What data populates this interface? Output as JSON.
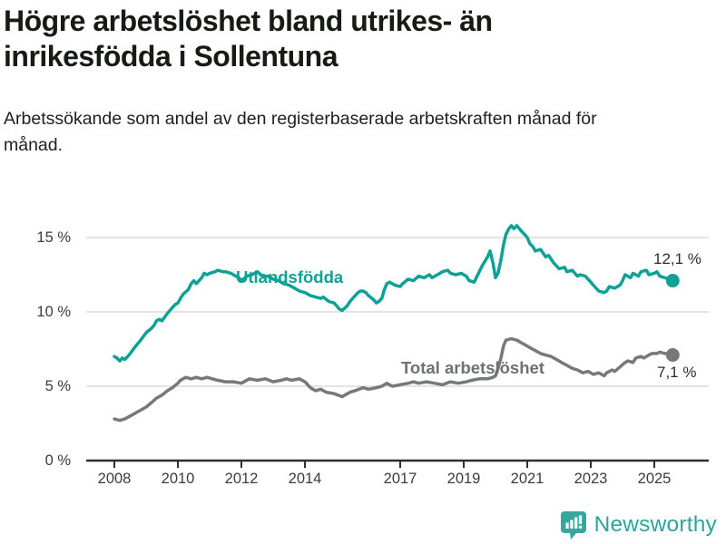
{
  "title": "Högre arbetslöshet bland utrikes- än inrikesfödda i Sollentuna",
  "subtitle": "Arbetssökande som andel av den registerbaserade arbetskraften månad för månad.",
  "branding": {
    "logo_text": "Newsworthy",
    "logo_icon": "bar-chart-speech-bubble-icon",
    "logo_color": "#2ca49b"
  },
  "colors": {
    "foreign_born_line": "#10a196",
    "total_line": "#77787b",
    "total_label": "#6e7073",
    "grid": "#dbdbdb",
    "axis": "#2e2e2e",
    "tick_text": "#3b3b3b",
    "value_text": "#2e2e2e",
    "background": "#ffffff"
  },
  "chart_data": {
    "type": "line",
    "title": "Högre arbetslöshet bland utrikes- än inrikesfödda i Sollentuna",
    "subtitle": "Arbetssökande som andel av den registerbaserade arbetskraften månad för månad.",
    "xlabel": "",
    "ylabel": "",
    "x_unit": "year (monthly data)",
    "y_unit": "%",
    "xlim": [
      2007.1,
      2026.7
    ],
    "ylim": [
      0,
      16.2
    ],
    "grid": "horizontal",
    "legend_position": "inline-labels",
    "x_ticks": [
      2008,
      2010,
      2012,
      2014,
      2017,
      2019,
      2021,
      2023,
      2025
    ],
    "x_tick_labels": [
      "2008",
      "2010",
      "2012",
      "2014",
      "2017",
      "2019",
      "2021",
      "2023",
      "2025"
    ],
    "y_ticks": [
      0,
      5,
      10,
      15
    ],
    "y_tick_labels": [
      "0 %",
      "5 %",
      "10 %",
      "15 %"
    ],
    "series": [
      {
        "name": "Utlandsfödda",
        "color": "#10a196",
        "end_value": 12.1,
        "end_label": "12,1 %",
        "points": [
          [
            2008.0,
            7.0
          ],
          [
            2008.08,
            6.9
          ],
          [
            2008.17,
            6.7
          ],
          [
            2008.25,
            6.9
          ],
          [
            2008.33,
            6.8
          ],
          [
            2008.42,
            7.0
          ],
          [
            2008.5,
            7.2
          ],
          [
            2008.67,
            7.7
          ],
          [
            2008.83,
            8.1
          ],
          [
            2009.0,
            8.6
          ],
          [
            2009.17,
            8.9
          ],
          [
            2009.25,
            9.1
          ],
          [
            2009.33,
            9.4
          ],
          [
            2009.42,
            9.5
          ],
          [
            2009.5,
            9.4
          ],
          [
            2009.67,
            9.9
          ],
          [
            2009.83,
            10.3
          ],
          [
            2009.92,
            10.5
          ],
          [
            2010.0,
            10.6
          ],
          [
            2010.08,
            10.9
          ],
          [
            2010.17,
            11.2
          ],
          [
            2010.33,
            11.5
          ],
          [
            2010.42,
            11.9
          ],
          [
            2010.5,
            12.1
          ],
          [
            2010.58,
            11.9
          ],
          [
            2010.75,
            12.3
          ],
          [
            2010.83,
            12.6
          ],
          [
            2010.92,
            12.5
          ],
          [
            2011.0,
            12.6
          ],
          [
            2011.17,
            12.7
          ],
          [
            2011.25,
            12.8
          ],
          [
            2011.42,
            12.7
          ],
          [
            2011.5,
            12.7
          ],
          [
            2011.67,
            12.6
          ],
          [
            2011.83,
            12.4
          ],
          [
            2011.92,
            12.3
          ],
          [
            2012.0,
            12.1
          ],
          [
            2012.17,
            12.4
          ],
          [
            2012.33,
            12.5
          ],
          [
            2012.5,
            12.7
          ],
          [
            2012.67,
            12.4
          ],
          [
            2012.83,
            12.4
          ],
          [
            2013.0,
            12.2
          ],
          [
            2013.17,
            12.1
          ],
          [
            2013.33,
            11.9
          ],
          [
            2013.5,
            11.8
          ],
          [
            2013.67,
            11.6
          ],
          [
            2013.83,
            11.4
          ],
          [
            2014.0,
            11.3
          ],
          [
            2014.17,
            11.1
          ],
          [
            2014.33,
            11.0
          ],
          [
            2014.5,
            10.9
          ],
          [
            2014.58,
            11.0
          ],
          [
            2014.75,
            10.7
          ],
          [
            2014.92,
            10.6
          ],
          [
            2015.0,
            10.4
          ],
          [
            2015.08,
            10.2
          ],
          [
            2015.17,
            10.1
          ],
          [
            2015.33,
            10.4
          ],
          [
            2015.42,
            10.7
          ],
          [
            2015.5,
            10.9
          ],
          [
            2015.67,
            11.3
          ],
          [
            2015.75,
            11.4
          ],
          [
            2015.83,
            11.4
          ],
          [
            2015.92,
            11.3
          ],
          [
            2016.0,
            11.1
          ],
          [
            2016.17,
            10.8
          ],
          [
            2016.25,
            10.6
          ],
          [
            2016.33,
            10.7
          ],
          [
            2016.42,
            10.9
          ],
          [
            2016.5,
            11.5
          ],
          [
            2016.58,
            11.9
          ],
          [
            2016.67,
            12.0
          ],
          [
            2016.83,
            11.8
          ],
          [
            2017.0,
            11.7
          ],
          [
            2017.08,
            11.9
          ],
          [
            2017.25,
            12.2
          ],
          [
            2017.42,
            12.1
          ],
          [
            2017.58,
            12.4
          ],
          [
            2017.75,
            12.3
          ],
          [
            2017.92,
            12.5
          ],
          [
            2018.0,
            12.3
          ],
          [
            2018.17,
            12.5
          ],
          [
            2018.33,
            12.7
          ],
          [
            2018.5,
            12.8
          ],
          [
            2018.58,
            12.6
          ],
          [
            2018.75,
            12.5
          ],
          [
            2018.92,
            12.6
          ],
          [
            2019.08,
            12.4
          ],
          [
            2019.17,
            12.1
          ],
          [
            2019.33,
            12.0
          ],
          [
            2019.42,
            12.4
          ],
          [
            2019.58,
            13.1
          ],
          [
            2019.75,
            13.7
          ],
          [
            2019.83,
            14.1
          ],
          [
            2019.92,
            13.3
          ],
          [
            2020.0,
            12.3
          ],
          [
            2020.08,
            12.6
          ],
          [
            2020.17,
            13.5
          ],
          [
            2020.25,
            14.5
          ],
          [
            2020.33,
            15.2
          ],
          [
            2020.42,
            15.6
          ],
          [
            2020.5,
            15.8
          ],
          [
            2020.58,
            15.6
          ],
          [
            2020.67,
            15.8
          ],
          [
            2020.75,
            15.6
          ],
          [
            2020.83,
            15.4
          ],
          [
            2020.92,
            15.2
          ],
          [
            2021.0,
            15.0
          ],
          [
            2021.08,
            14.6
          ],
          [
            2021.17,
            14.4
          ],
          [
            2021.25,
            14.1
          ],
          [
            2021.42,
            14.2
          ],
          [
            2021.58,
            13.7
          ],
          [
            2021.67,
            13.8
          ],
          [
            2021.83,
            13.3
          ],
          [
            2021.92,
            13.1
          ],
          [
            2022.0,
            12.9
          ],
          [
            2022.17,
            13.0
          ],
          [
            2022.25,
            12.7
          ],
          [
            2022.42,
            12.8
          ],
          [
            2022.58,
            12.4
          ],
          [
            2022.67,
            12.5
          ],
          [
            2022.83,
            12.4
          ],
          [
            2023.0,
            12.0
          ],
          [
            2023.08,
            11.8
          ],
          [
            2023.25,
            11.4
          ],
          [
            2023.42,
            11.3
          ],
          [
            2023.5,
            11.4
          ],
          [
            2023.58,
            11.7
          ],
          [
            2023.75,
            11.6
          ],
          [
            2023.92,
            11.8
          ],
          [
            2024.0,
            12.1
          ],
          [
            2024.08,
            12.5
          ],
          [
            2024.25,
            12.3
          ],
          [
            2024.33,
            12.6
          ],
          [
            2024.5,
            12.4
          ],
          [
            2024.58,
            12.7
          ],
          [
            2024.75,
            12.8
          ],
          [
            2024.83,
            12.5
          ],
          [
            2025.0,
            12.6
          ],
          [
            2025.08,
            12.7
          ],
          [
            2025.17,
            12.4
          ],
          [
            2025.33,
            12.3
          ],
          [
            2025.5,
            12.2
          ],
          [
            2025.58,
            12.1
          ]
        ]
      },
      {
        "name": "Total arbetslöshet",
        "color": "#77787b",
        "end_value": 7.1,
        "end_label": "7,1 %",
        "points": [
          [
            2008.0,
            2.8
          ],
          [
            2008.17,
            2.7
          ],
          [
            2008.33,
            2.8
          ],
          [
            2008.5,
            3.0
          ],
          [
            2008.75,
            3.3
          ],
          [
            2009.0,
            3.6
          ],
          [
            2009.17,
            3.9
          ],
          [
            2009.33,
            4.2
          ],
          [
            2009.5,
            4.4
          ],
          [
            2009.67,
            4.7
          ],
          [
            2009.83,
            4.9
          ],
          [
            2010.0,
            5.2
          ],
          [
            2010.08,
            5.4
          ],
          [
            2010.25,
            5.6
          ],
          [
            2010.42,
            5.5
          ],
          [
            2010.58,
            5.6
          ],
          [
            2010.75,
            5.5
          ],
          [
            2010.92,
            5.6
          ],
          [
            2011.08,
            5.5
          ],
          [
            2011.25,
            5.4
          ],
          [
            2011.5,
            5.3
          ],
          [
            2011.75,
            5.3
          ],
          [
            2012.0,
            5.2
          ],
          [
            2012.25,
            5.5
          ],
          [
            2012.5,
            5.4
          ],
          [
            2012.75,
            5.5
          ],
          [
            2013.0,
            5.3
          ],
          [
            2013.25,
            5.4
          ],
          [
            2013.42,
            5.5
          ],
          [
            2013.58,
            5.4
          ],
          [
            2013.83,
            5.5
          ],
          [
            2014.0,
            5.3
          ],
          [
            2014.17,
            4.9
          ],
          [
            2014.33,
            4.7
          ],
          [
            2014.5,
            4.8
          ],
          [
            2014.67,
            4.6
          ],
          [
            2014.92,
            4.5
          ],
          [
            2015.17,
            4.3
          ],
          [
            2015.42,
            4.6
          ],
          [
            2015.58,
            4.7
          ],
          [
            2015.83,
            4.9
          ],
          [
            2016.0,
            4.8
          ],
          [
            2016.25,
            4.9
          ],
          [
            2016.42,
            5.0
          ],
          [
            2016.58,
            5.2
          ],
          [
            2016.75,
            5.0
          ],
          [
            2017.0,
            5.1
          ],
          [
            2017.25,
            5.2
          ],
          [
            2017.42,
            5.3
          ],
          [
            2017.58,
            5.2
          ],
          [
            2017.83,
            5.3
          ],
          [
            2018.08,
            5.2
          ],
          [
            2018.33,
            5.1
          ],
          [
            2018.58,
            5.3
          ],
          [
            2018.83,
            5.2
          ],
          [
            2019.08,
            5.3
          ],
          [
            2019.25,
            5.4
          ],
          [
            2019.5,
            5.5
          ],
          [
            2019.75,
            5.5
          ],
          [
            2019.92,
            5.6
          ],
          [
            2020.0,
            5.7
          ],
          [
            2020.08,
            6.2
          ],
          [
            2020.17,
            6.9
          ],
          [
            2020.25,
            7.7
          ],
          [
            2020.33,
            8.1
          ],
          [
            2020.5,
            8.2
          ],
          [
            2020.67,
            8.1
          ],
          [
            2020.83,
            7.9
          ],
          [
            2021.0,
            7.7
          ],
          [
            2021.08,
            7.6
          ],
          [
            2021.25,
            7.4
          ],
          [
            2021.42,
            7.2
          ],
          [
            2021.58,
            7.1
          ],
          [
            2021.75,
            7.0
          ],
          [
            2021.92,
            6.8
          ],
          [
            2022.08,
            6.6
          ],
          [
            2022.25,
            6.4
          ],
          [
            2022.42,
            6.2
          ],
          [
            2022.58,
            6.1
          ],
          [
            2022.75,
            5.9
          ],
          [
            2022.92,
            6.0
          ],
          [
            2023.08,
            5.8
          ],
          [
            2023.25,
            5.9
          ],
          [
            2023.42,
            5.7
          ],
          [
            2023.5,
            5.9
          ],
          [
            2023.67,
            6.1
          ],
          [
            2023.75,
            6.0
          ],
          [
            2023.92,
            6.3
          ],
          [
            2024.08,
            6.6
          ],
          [
            2024.17,
            6.7
          ],
          [
            2024.33,
            6.6
          ],
          [
            2024.42,
            6.9
          ],
          [
            2024.58,
            7.0
          ],
          [
            2024.67,
            6.9
          ],
          [
            2024.83,
            7.1
          ],
          [
            2024.92,
            7.2
          ],
          [
            2025.08,
            7.2
          ],
          [
            2025.17,
            7.3
          ],
          [
            2025.33,
            7.2
          ],
          [
            2025.5,
            7.2
          ],
          [
            2025.58,
            7.1
          ]
        ]
      }
    ]
  }
}
